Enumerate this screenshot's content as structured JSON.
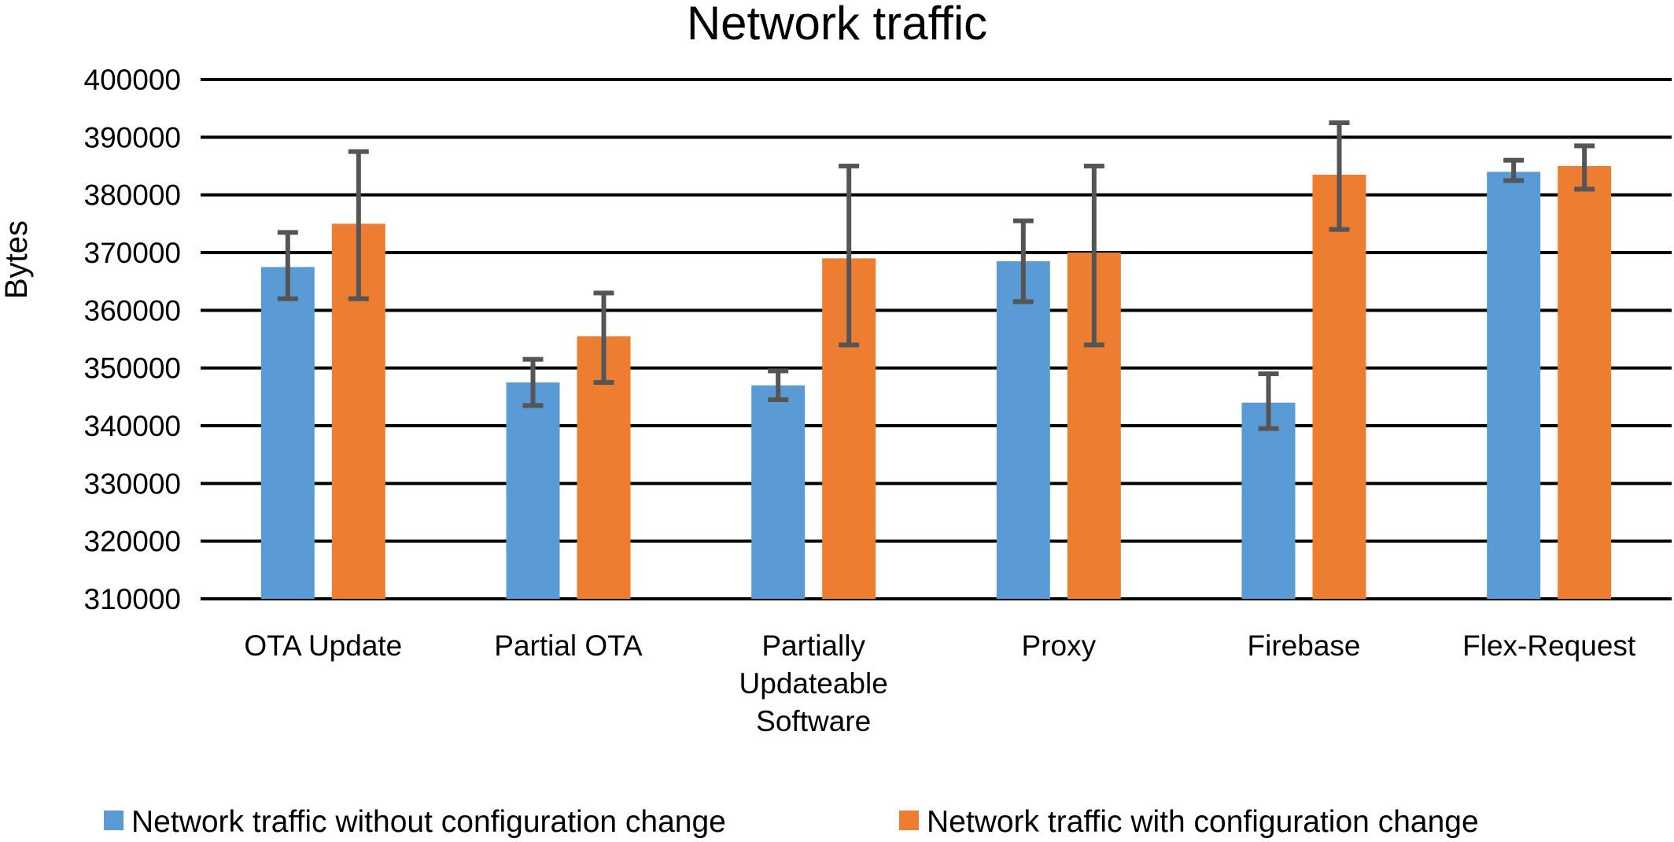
{
  "chart_data": {
    "type": "bar",
    "title": "Network traffic",
    "xlabel": "",
    "ylabel": "Bytes",
    "ylim": [
      310000,
      400000
    ],
    "yticks": [
      400000,
      390000,
      380000,
      370000,
      360000,
      350000,
      340000,
      330000,
      320000,
      310000
    ],
    "grid": true,
    "legend_position": "bottom",
    "categories": [
      [
        "OTA Update"
      ],
      [
        "Partial OTA"
      ],
      [
        "Partially",
        "Updateable",
        "Software"
      ],
      [
        "Proxy"
      ],
      [
        "Firebase"
      ],
      [
        "Flex-Request"
      ]
    ],
    "series": [
      {
        "name": "Network traffic without configuration change",
        "color": "#5B9BD5",
        "values": [
          367500,
          347500,
          347000,
          368500,
          344000,
          384000
        ],
        "error_low": [
          362000,
          343500,
          344500,
          361500,
          339500,
          382500
        ],
        "error_high": [
          373500,
          351500,
          349500,
          375500,
          349000,
          386000
        ]
      },
      {
        "name": "Network traffic with configuration change",
        "color": "#ED7D31",
        "values": [
          375000,
          355500,
          369000,
          370000,
          383500,
          385000
        ],
        "error_low": [
          362000,
          347500,
          354000,
          354000,
          374000,
          381000
        ],
        "error_high": [
          387500,
          363000,
          385000,
          385000,
          392500,
          388500
        ]
      }
    ]
  }
}
